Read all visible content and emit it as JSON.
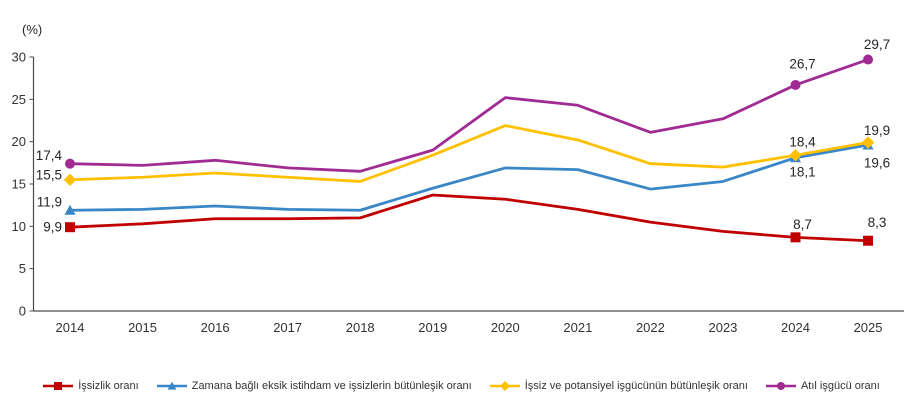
{
  "chart": {
    "unit_label": "(%)"
  },
  "chart_data": {
    "type": "line",
    "title": "",
    "xlabel": "",
    "ylabel": "(%)",
    "ylim": [
      0,
      30
    ],
    "ytick_step": 5,
    "grid": false,
    "legend_position": "bottom",
    "categories": [
      "2014",
      "2015",
      "2016",
      "2017",
      "2018",
      "2019",
      "2020",
      "2021",
      "2022",
      "2023",
      "2024",
      "2025"
    ],
    "marker_indices": [
      0,
      10,
      11
    ],
    "series": [
      {
        "name": "İşsizlik oranı",
        "color": "#C00000",
        "marker": "square",
        "values": [
          9.9,
          10.3,
          10.9,
          10.9,
          11.0,
          13.7,
          13.2,
          12.0,
          10.5,
          9.4,
          8.7,
          8.3
        ],
        "point_labels": [
          {
            "index": 0,
            "text": "9,9",
            "pos": "left",
            "dx": 0,
            "dy": 0
          },
          {
            "index": 10,
            "text": "8,7",
            "pos": "above",
            "dx": 7,
            "dy": -13
          },
          {
            "index": 11,
            "text": "8,3",
            "pos": "above",
            "dx": 9,
            "dy": -18
          }
        ]
      },
      {
        "name": "Zamana bağlı eksik istihdam ve işsizlerin bütünleşik oranı",
        "color": "#3A87C8",
        "marker": "triangle",
        "values": [
          11.9,
          12.0,
          12.4,
          12.0,
          11.9,
          14.5,
          16.9,
          16.7,
          14.4,
          15.3,
          18.1,
          19.6
        ],
        "point_labels": [
          {
            "index": 0,
            "text": "11,9",
            "pos": "left",
            "dx": 0,
            "dy": -8
          },
          {
            "index": 10,
            "text": "18,1",
            "pos": "below",
            "dx": 7,
            "dy": 14
          },
          {
            "index": 11,
            "text": "19,6",
            "pos": "below",
            "dx": 9,
            "dy": 18
          }
        ]
      },
      {
        "name": "İşsiz ve potansiyel işgücünün bütünleşik oranı",
        "color": "#FFC000",
        "marker": "diamond",
        "values": [
          15.5,
          15.8,
          16.3,
          15.8,
          15.3,
          18.4,
          21.9,
          20.2,
          17.4,
          17.0,
          18.4,
          19.9
        ],
        "point_labels": [
          {
            "index": 0,
            "text": "15,5",
            "pos": "left",
            "dx": 0,
            "dy": -5
          },
          {
            "index": 10,
            "text": "18,4",
            "pos": "above",
            "dx": 7,
            "dy": -13
          },
          {
            "index": 11,
            "text": "19,9",
            "pos": "above",
            "dx": 9,
            "dy": -12
          }
        ]
      },
      {
        "name": "Atıl işgücü oranı",
        "color": "#A02B93",
        "marker": "circle",
        "values": [
          17.4,
          17.2,
          17.8,
          16.9,
          16.5,
          19.0,
          25.2,
          24.3,
          21.1,
          22.7,
          26.7,
          29.7
        ],
        "point_labels": [
          {
            "index": 0,
            "text": "17,4",
            "pos": "left",
            "dx": 0,
            "dy": -8
          },
          {
            "index": 10,
            "text": "26,7",
            "pos": "above",
            "dx": 7,
            "dy": -21
          },
          {
            "index": 11,
            "text": "29,7",
            "pos": "above",
            "dx": 9,
            "dy": -15
          }
        ]
      }
    ]
  }
}
